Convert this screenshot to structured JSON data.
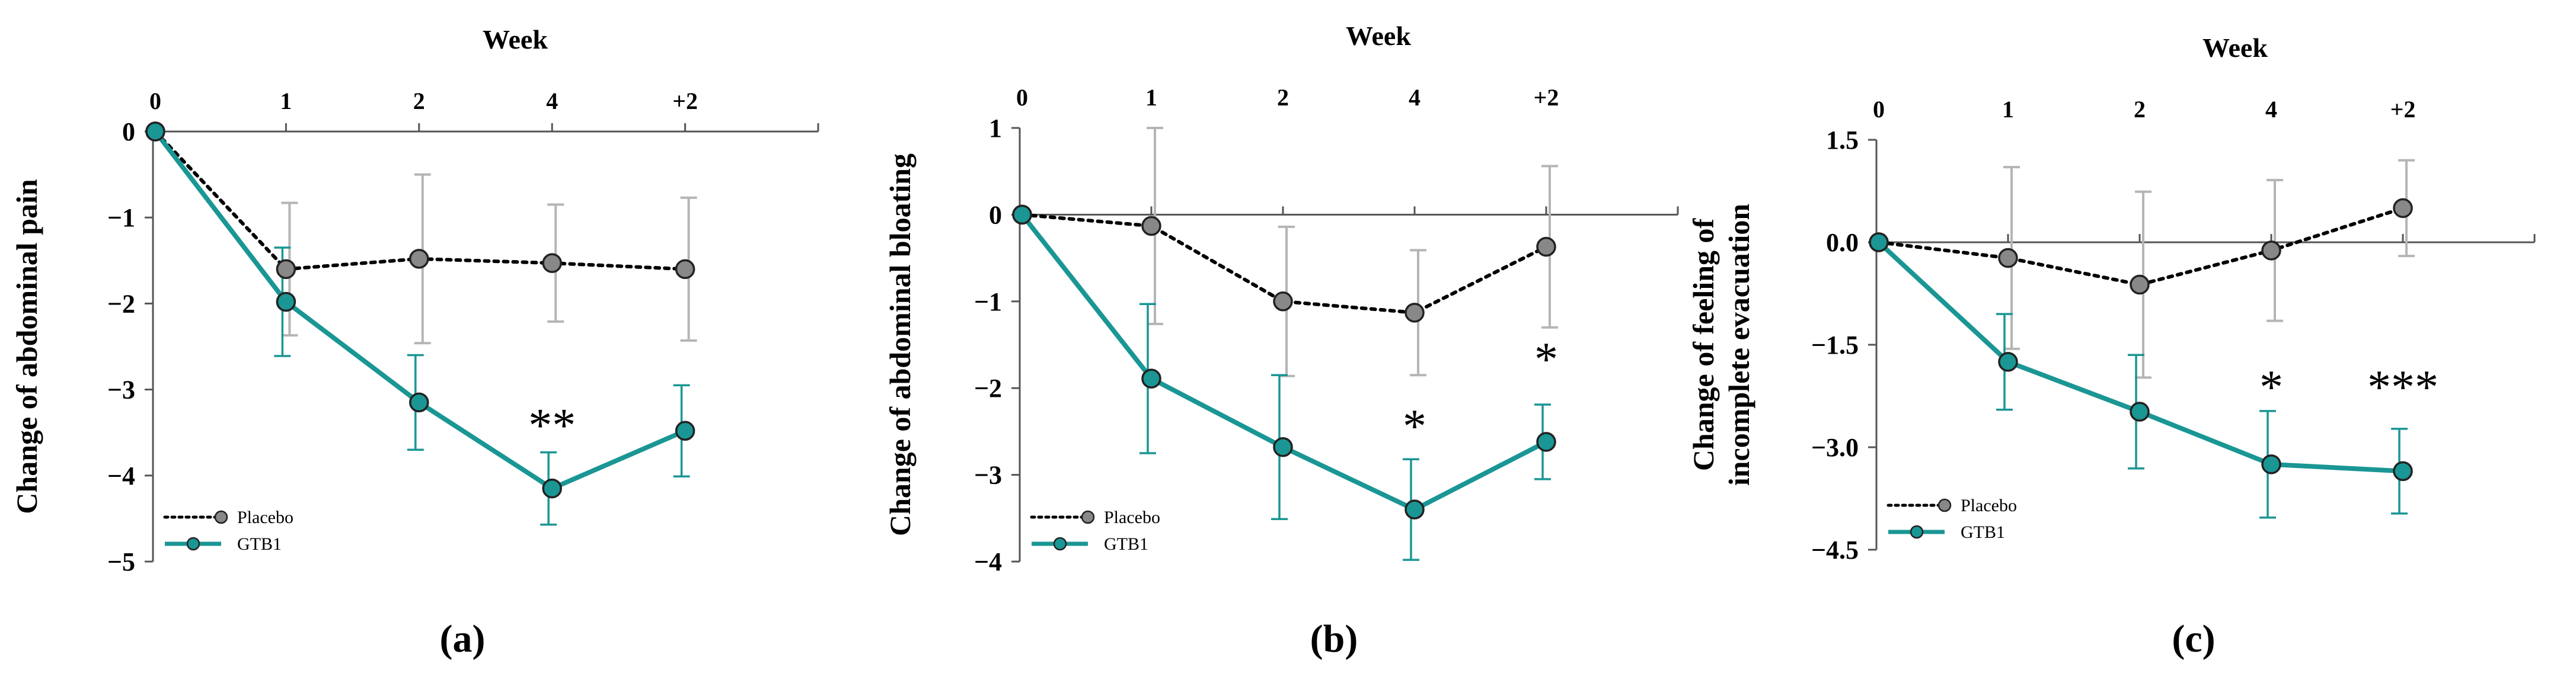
{
  "colors": {
    "placebo_line": "#000000",
    "placebo_marker": "#888888",
    "placebo_err": "#b5b5b5",
    "gtb1_line": "#1a9694",
    "gtb1_marker": "#1a9694",
    "gtb1_err": "#1a9694",
    "axis": "#555555"
  },
  "chart_data": [
    {
      "type": "line",
      "panel_label": "(a)",
      "title": "Week",
      "categories": [
        "0",
        "1",
        "2",
        "4",
        "+2"
      ],
      "ylabel": [
        "Change of abdominal pain"
      ],
      "ylim": [
        -5,
        0
      ],
      "yticks": [
        0,
        -1,
        -2,
        -3,
        -4,
        -5
      ],
      "ytick_labels": [
        "0",
        "−1",
        "−2",
        "−3",
        "−4",
        "−5"
      ],
      "series": [
        {
          "name": "Placebo",
          "values": [
            0,
            -1.6,
            -1.48,
            -1.53,
            -1.6
          ],
          "err": [
            0,
            0.77,
            0.98,
            0.68,
            0.83
          ]
        },
        {
          "name": "GTB1",
          "values": [
            0,
            -1.98,
            -3.15,
            -4.15,
            -3.48
          ],
          "err": [
            0,
            0.63,
            0.55,
            0.42,
            0.53
          ]
        }
      ],
      "annotations": [
        {
          "category_index": 3,
          "text": "**",
          "y": -3.6
        }
      ],
      "legend": {
        "placement": "bottom-left",
        "entries": [
          "Placebo",
          "GTB1"
        ]
      }
    },
    {
      "type": "line",
      "panel_label": "(b)",
      "title": "Week",
      "categories": [
        "0",
        "1",
        "2",
        "4",
        "+2"
      ],
      "ylabel": [
        "Change of abdominal bloating"
      ],
      "ylim": [
        -4,
        1
      ],
      "yticks": [
        1,
        0,
        -1,
        -2,
        -3,
        -4
      ],
      "ytick_labels": [
        "1",
        "0",
        "−1",
        "−2",
        "−3",
        "−4"
      ],
      "series": [
        {
          "name": "Placebo",
          "values": [
            0,
            -0.13,
            -1.0,
            -1.13,
            -0.37
          ],
          "err": [
            0,
            1.13,
            0.86,
            0.72,
            0.93
          ]
        },
        {
          "name": "GTB1",
          "values": [
            0,
            -1.89,
            -2.68,
            -3.4,
            -2.62
          ],
          "err": [
            0,
            0.86,
            0.83,
            0.58,
            0.43
          ]
        }
      ],
      "annotations": [
        {
          "category_index": 3,
          "text": "*",
          "y": -2.62
        },
        {
          "category_index": 4,
          "text": "*",
          "y": -1.85
        }
      ],
      "legend": {
        "placement": "bottom-left",
        "entries": [
          "Placebo",
          "GTB1"
        ]
      }
    },
    {
      "type": "line",
      "panel_label": "(c)",
      "title": "Week",
      "categories": [
        "0",
        "1",
        "2",
        "4",
        "+2"
      ],
      "ylabel": [
        "Change of feeling of",
        "incomplete evacuation"
      ],
      "ylim": [
        -4.5,
        1.5
      ],
      "yticks": [
        1.5,
        0.0,
        -1.5,
        -3.0,
        -4.5
      ],
      "ytick_labels": [
        "1.5",
        "0.0",
        "−1.5",
        "−3.0",
        "−4.5"
      ],
      "series": [
        {
          "name": "Placebo",
          "values": [
            0,
            -0.23,
            -0.62,
            -0.12,
            0.5
          ],
          "err": [
            0,
            1.33,
            1.36,
            1.03,
            0.7
          ]
        },
        {
          "name": "GTB1",
          "values": [
            0,
            -1.75,
            -2.48,
            -3.25,
            -3.35
          ],
          "err": [
            0,
            0.7,
            0.83,
            0.78,
            0.62
          ]
        }
      ],
      "annotations": [
        {
          "category_index": 3,
          "text": "*",
          "y": -2.35
        },
        {
          "category_index": 4,
          "text": "***",
          "y": -2.35
        }
      ],
      "legend": {
        "placement": "bottom-left",
        "entries": [
          "Placebo",
          "GTB1"
        ]
      }
    }
  ]
}
